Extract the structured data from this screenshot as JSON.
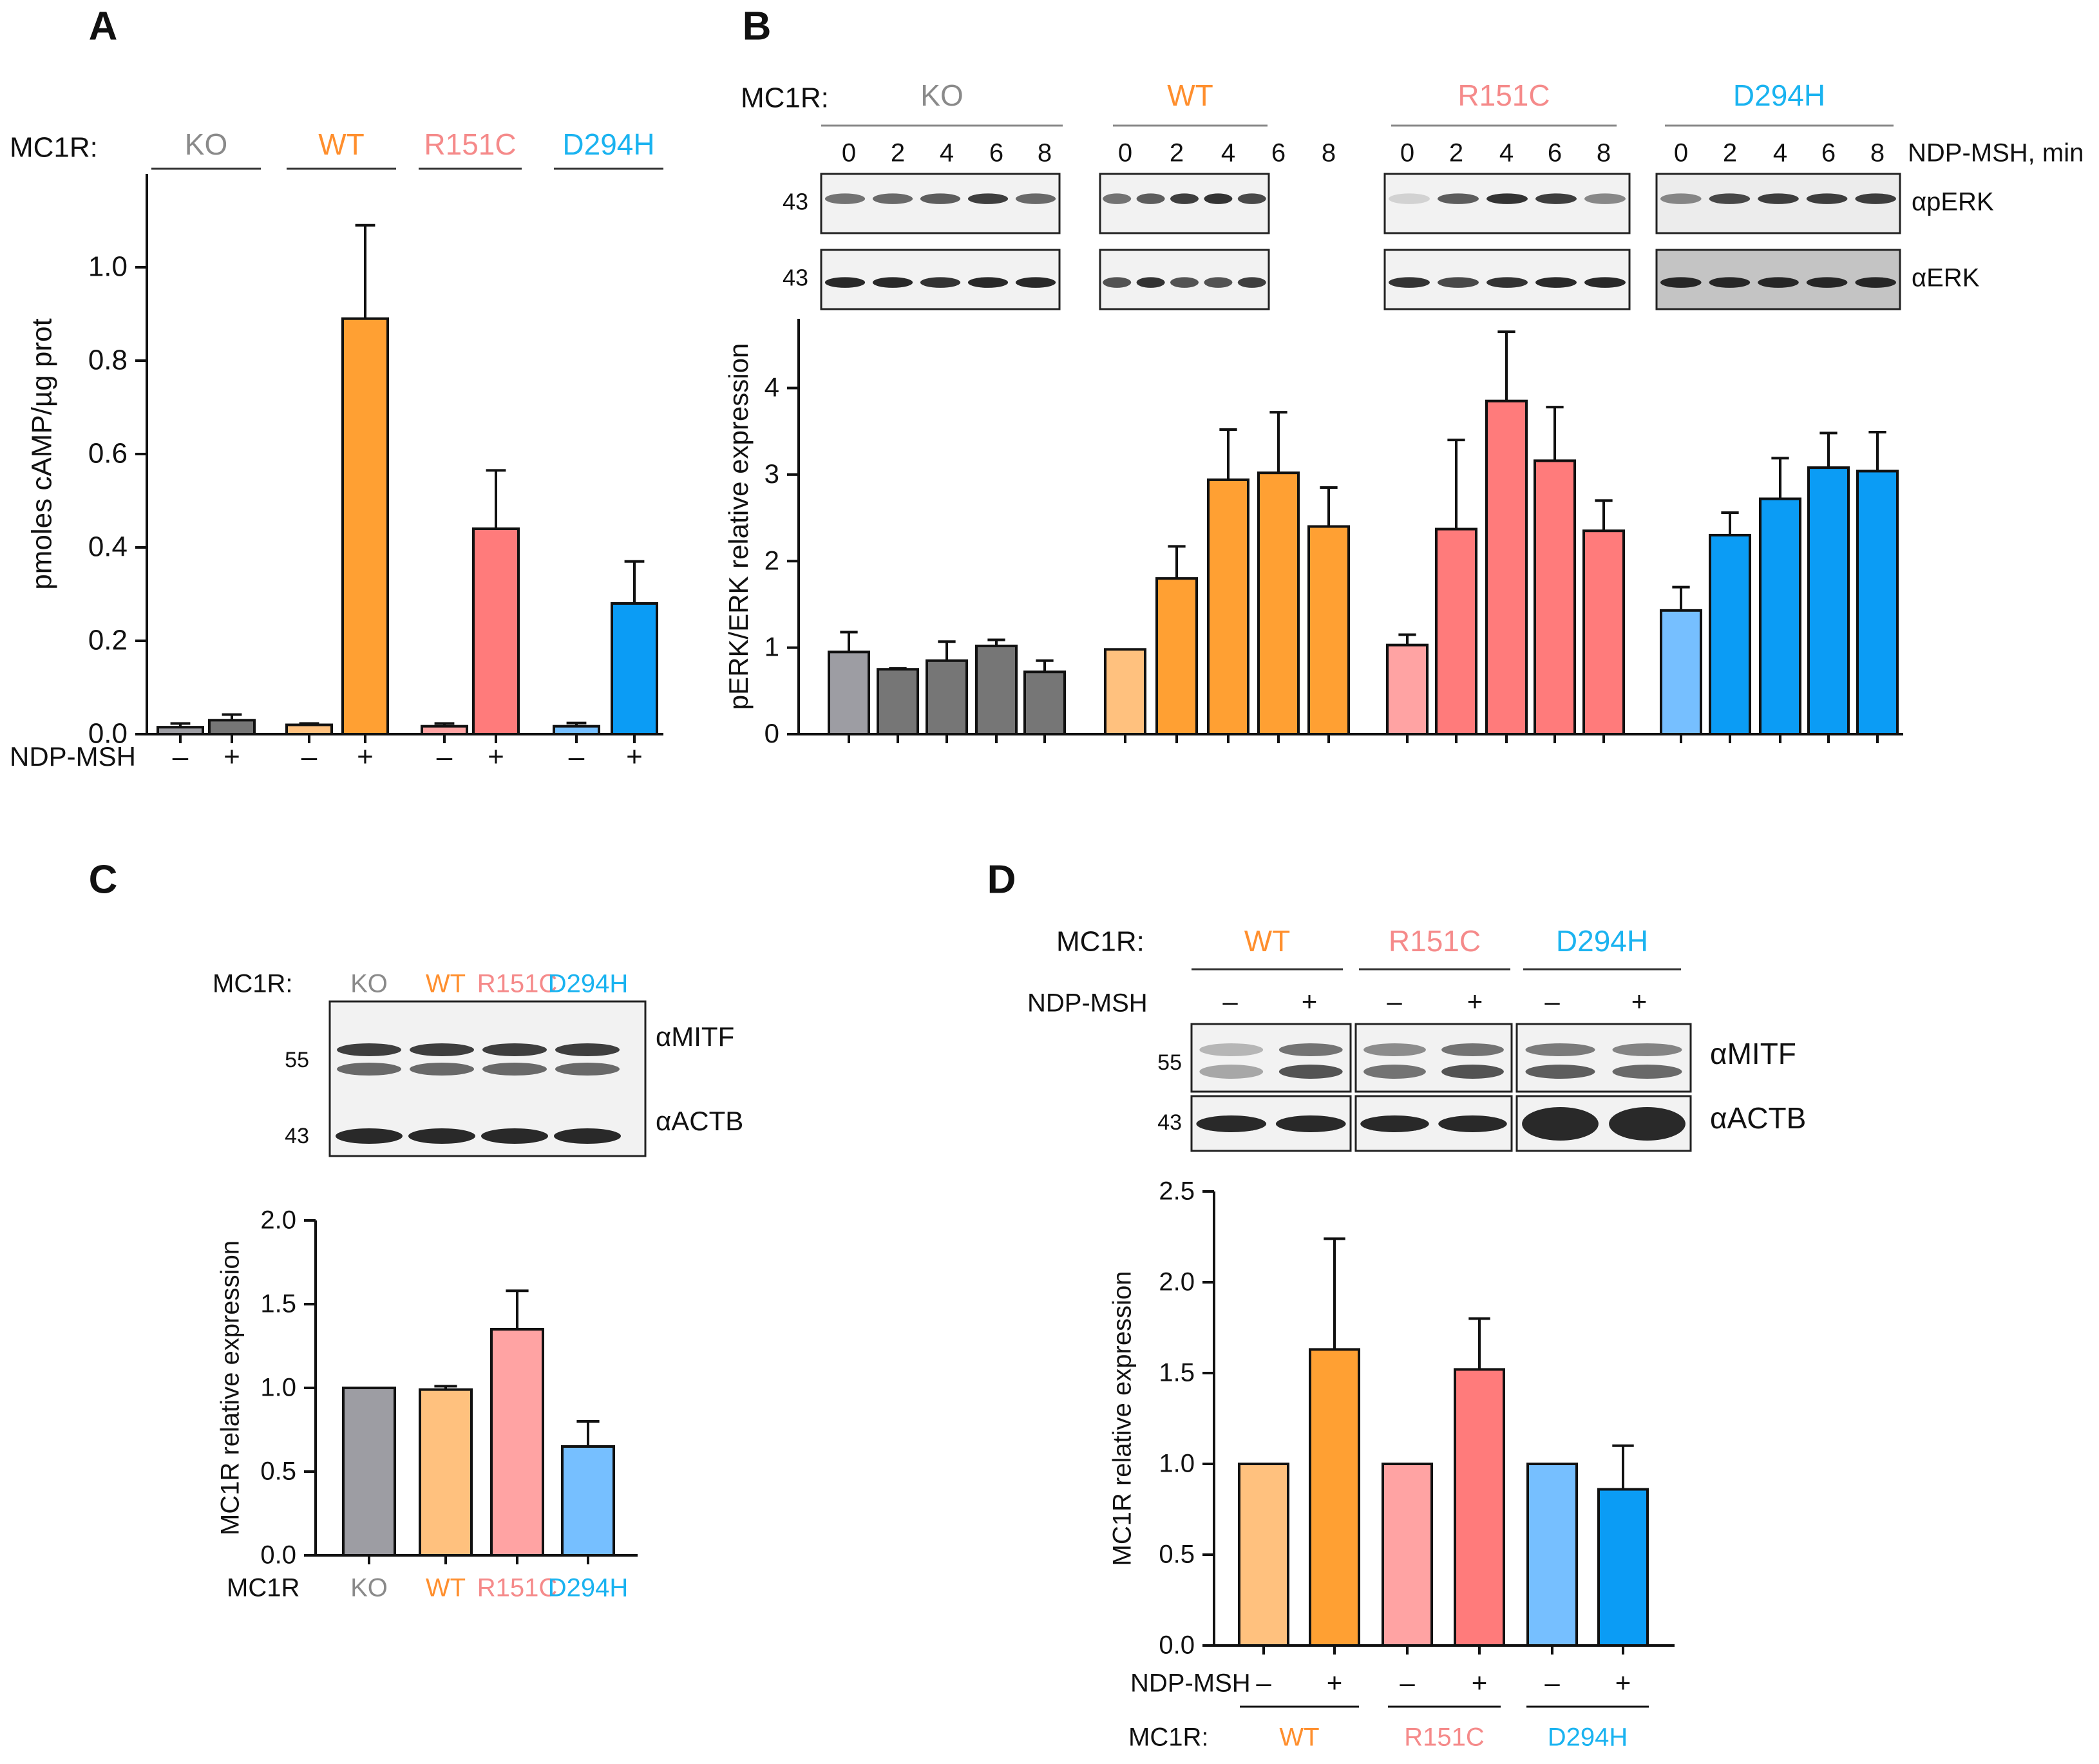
{
  "colors": {
    "KO_minus": "#9d9da3",
    "KO_plus": "#767676",
    "WT_light": "#ffc17e",
    "WT": "#ffa033",
    "R151C_light": "#ffa3a3",
    "R151C": "#ff7b7b",
    "D294H_light": "#76bfff",
    "D294H": "#0b9cf5",
    "text_KO": "#8a8a8a",
    "text_WT": "#ff8f2e",
    "text_R151C": "#f58a8a",
    "text_D294H": "#1ab3f0",
    "blot_bg": "#f2f2f2",
    "blot_dark_bg": "#c4c4c4",
    "band": "#1e1e1e"
  },
  "panels": {
    "A": {
      "letter": "A",
      "mc1r_label": "MC1R:",
      "groups": [
        "KO",
        "WT",
        "R151C",
        "D294H"
      ],
      "treatment_label": "NDP-MSH",
      "minus": "–",
      "plus": "+"
    },
    "B": {
      "letter": "B",
      "mc1r_label": "MC1R:",
      "groups": [
        "KO",
        "WT",
        "R151C",
        "D294H"
      ],
      "times": [
        "0",
        "2",
        "4",
        "6",
        "8"
      ],
      "time_label": "NDP-MSH, min",
      "blot_rows": [
        {
          "marker": "43",
          "antibody": "αpERK"
        },
        {
          "marker": "43",
          "antibody": "αERK"
        }
      ]
    },
    "C": {
      "letter": "C",
      "mc1r_label": "MC1R:",
      "groups": [
        "KO",
        "WT",
        "R151C",
        "D294H"
      ],
      "markers": [
        "55",
        "43"
      ],
      "antibodies": [
        "αMITF",
        "αACTB"
      ],
      "x_row_label": "MC1R"
    },
    "D": {
      "letter": "D",
      "mc1r_label": "MC1R:",
      "groups": [
        "WT",
        "R151C",
        "D294H"
      ],
      "treatment_label": "NDP-MSH",
      "minus": "–",
      "plus": "+",
      "markers": [
        "55",
        "43"
      ],
      "antibodies": [
        "αMITF",
        "αACTB"
      ],
      "x_row_label": "MC1R:"
    }
  },
  "chart_data": [
    {
      "panel": "A",
      "type": "bar",
      "ylabel": "pmoles cAMP/µg prot",
      "ylim": [
        0,
        1.2
      ],
      "yticks": [
        "0.0",
        "0.2",
        "0.4",
        "0.6",
        "0.8",
        "1.0"
      ],
      "bars": [
        {
          "group": "KO",
          "treatment": "–",
          "value": 0.015,
          "error": 0.008,
          "color_key": "KO_minus"
        },
        {
          "group": "KO",
          "treatment": "+",
          "value": 0.03,
          "error": 0.012,
          "color_key": "KO_plus"
        },
        {
          "group": "WT",
          "treatment": "–",
          "value": 0.02,
          "error": 0.003,
          "color_key": "WT_light"
        },
        {
          "group": "WT",
          "treatment": "+",
          "value": 0.89,
          "error": 0.2,
          "color_key": "WT"
        },
        {
          "group": "R151C",
          "treatment": "–",
          "value": 0.017,
          "error": 0.006,
          "color_key": "R151C_light"
        },
        {
          "group": "R151C",
          "treatment": "+",
          "value": 0.44,
          "error": 0.125,
          "color_key": "R151C"
        },
        {
          "group": "D294H",
          "treatment": "–",
          "value": 0.017,
          "error": 0.007,
          "color_key": "D294H_light"
        },
        {
          "group": "D294H",
          "treatment": "+",
          "value": 0.28,
          "error": 0.09,
          "color_key": "D294H"
        }
      ]
    },
    {
      "panel": "B",
      "type": "bar",
      "ylabel": "pERK/ERK relative expression",
      "ylim": [
        0,
        4.8
      ],
      "yticks": [
        "0",
        "1",
        "2",
        "3",
        "4"
      ],
      "categories": [
        "0",
        "2",
        "4",
        "6",
        "8"
      ],
      "series": [
        {
          "name": "KO",
          "values": [
            0.95,
            0.75,
            0.85,
            1.02,
            0.72
          ],
          "errors": [
            0.23,
            0.01,
            0.22,
            0.07,
            0.13
          ],
          "colors": [
            "KO_minus",
            "KO_plus",
            "KO_plus",
            "KO_plus",
            "KO_plus"
          ]
        },
        {
          "name": "WT",
          "values": [
            0.98,
            1.8,
            2.94,
            3.02,
            2.4
          ],
          "errors": [
            0.0,
            0.37,
            0.58,
            0.7,
            0.45
          ],
          "colors": [
            "WT_light",
            "WT",
            "WT",
            "WT",
            "WT"
          ]
        },
        {
          "name": "R151C",
          "values": [
            1.03,
            2.37,
            3.85,
            3.16,
            2.35
          ],
          "errors": [
            0.12,
            1.03,
            0.8,
            0.62,
            0.35
          ],
          "colors": [
            "R151C_light",
            "R151C",
            "R151C",
            "R151C",
            "R151C"
          ]
        },
        {
          "name": "D294H",
          "values": [
            1.43,
            2.3,
            2.72,
            3.08,
            3.04
          ],
          "errors": [
            0.27,
            0.26,
            0.47,
            0.4,
            0.45
          ],
          "colors": [
            "D294H_light",
            "D294H",
            "D294H",
            "D294H",
            "D294H"
          ]
        }
      ]
    },
    {
      "panel": "C",
      "type": "bar",
      "ylabel": "MC1R relative expression",
      "ylim": [
        0,
        2.0
      ],
      "yticks": [
        "0.0",
        "0.5",
        "1.0",
        "1.5",
        "2.0"
      ],
      "categories": [
        "KO",
        "WT",
        "R151C",
        "D294H"
      ],
      "values": [
        1.0,
        0.99,
        1.35,
        0.65
      ],
      "errors": [
        0.0,
        0.02,
        0.23,
        0.15
      ],
      "colors": [
        "KO_minus",
        "WT_light",
        "R151C_light",
        "D294H_light"
      ]
    },
    {
      "panel": "D",
      "type": "bar",
      "ylabel": "MC1R relative expression",
      "ylim": [
        0,
        2.5
      ],
      "yticks": [
        "0.0",
        "0.5",
        "1.0",
        "1.5",
        "2.0",
        "2.5"
      ],
      "bars": [
        {
          "group": "WT",
          "treatment": "–",
          "value": 1.0,
          "error": 0.0,
          "color_key": "WT_light"
        },
        {
          "group": "WT",
          "treatment": "+",
          "value": 1.63,
          "error": 0.61,
          "color_key": "WT"
        },
        {
          "group": "R151C",
          "treatment": "–",
          "value": 1.0,
          "error": 0.0,
          "color_key": "R151C_light"
        },
        {
          "group": "R151C",
          "treatment": "+",
          "value": 1.52,
          "error": 0.28,
          "color_key": "R151C"
        },
        {
          "group": "D294H",
          "treatment": "–",
          "value": 1.0,
          "error": 0.0,
          "color_key": "D294H_light"
        },
        {
          "group": "D294H",
          "treatment": "+",
          "value": 0.86,
          "error": 0.24,
          "color_key": "D294H"
        }
      ]
    }
  ]
}
